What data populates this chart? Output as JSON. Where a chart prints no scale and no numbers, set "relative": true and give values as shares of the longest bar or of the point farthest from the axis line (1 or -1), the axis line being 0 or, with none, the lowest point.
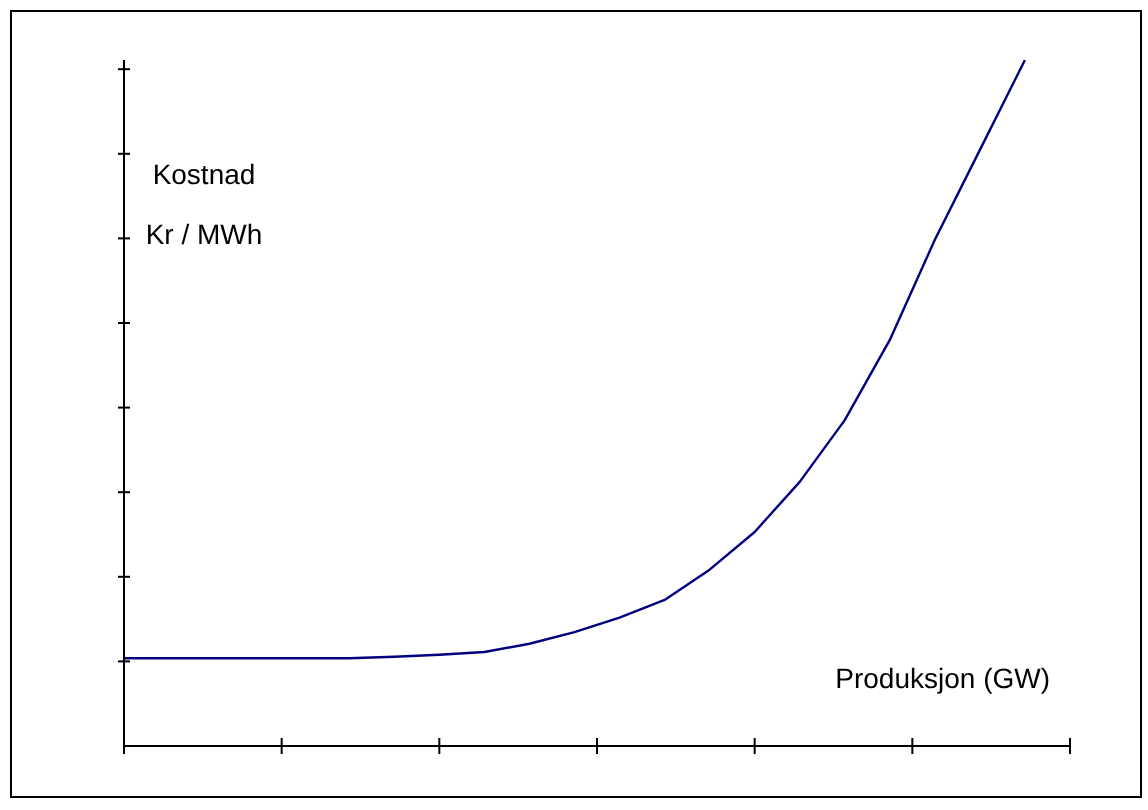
{
  "chart_data": {
    "type": "line",
    "relative": true,
    "xlabel": "Produksjon (GW)",
    "ylabel": "Kostnad\nKr / MWh",
    "categories": [
      null,
      null,
      null,
      null,
      null,
      null,
      null,
      null,
      null,
      null,
      null,
      null,
      null,
      null,
      null,
      null,
      null,
      null,
      null,
      null,
      null,
      null
    ],
    "series": [
      {
        "color": "#000080",
        "values": [
          0.128,
          0.128,
          0.128,
          0.128,
          0.128,
          0.128,
          0.13,
          0.133,
          0.137,
          0.149,
          0.166,
          0.187,
          0.213,
          0.257,
          0.312,
          0.385,
          0.475,
          0.592,
          0.738,
          0.869,
          1,
          null
        ]
      }
    ],
    "marker": "none",
    "line_style": "solid",
    "legend": false
  }
}
